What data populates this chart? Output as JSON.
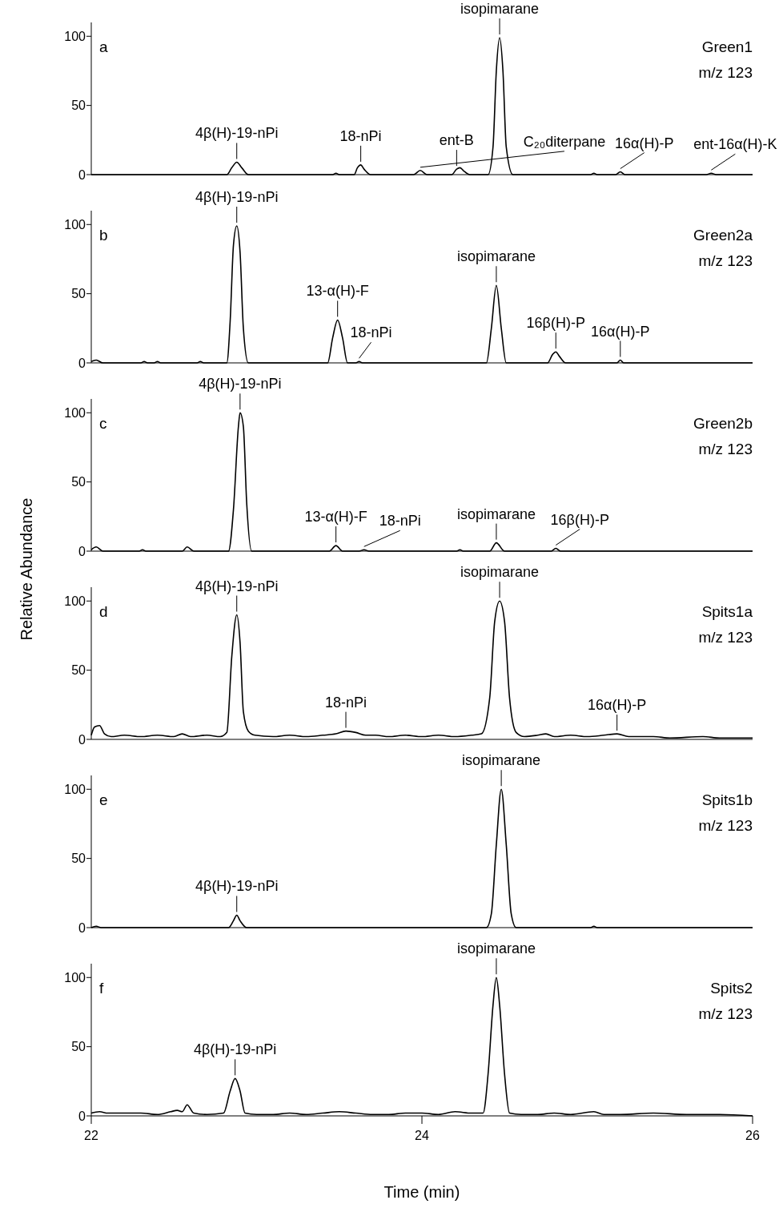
{
  "chart_data": [
    {
      "type": "line",
      "title": "a",
      "annotations": [
        "Green1",
        "m/z 123",
        {
          "text": "isopimarane",
          "x": 24.47,
          "y": 99
        },
        {
          "text": "4β(H)-19-nPi",
          "x": 22.88,
          "y": 9
        },
        {
          "text": "18-nPi",
          "x": 23.63,
          "y": 7
        },
        {
          "text": "C₂₀diterpane",
          "x": 23.99,
          "y": 3
        },
        {
          "text": "ent-B",
          "x": 24.21,
          "y": 4
        },
        {
          "text": "16α(H)-P",
          "x": 25.2,
          "y": 2
        },
        {
          "text": "ent-16α(H)-K",
          "x": 25.75,
          "y": 1
        }
      ],
      "xlim": [
        22,
        26
      ],
      "xticks": [
        22,
        24,
        26
      ],
      "ylim": [
        0,
        110
      ],
      "yticks": [
        0,
        50,
        100
      ],
      "tick_labels": "y",
      "series": [
        {
          "color": "#000000",
          "x": [
            22,
            22.82,
            22.85,
            22.88,
            22.91,
            22.95,
            23.46,
            23.48,
            23.5,
            23.59,
            23.61,
            23.63,
            23.65,
            23.69,
            23.95,
            23.99,
            24.03,
            24.18,
            24.21,
            24.23,
            24.25,
            24.29,
            24.4,
            24.43,
            24.45,
            24.47,
            24.49,
            24.51,
            24.55,
            25.02,
            25.04,
            25.06,
            25.17,
            25.2,
            25.23,
            25.72,
            25.75,
            25.78,
            26
          ],
          "values": [
            0,
            0,
            5,
            9,
            5,
            0,
            0,
            1,
            0,
            0,
            5,
            7,
            4,
            0,
            0,
            3,
            0,
            0,
            4,
            5,
            3,
            0,
            0,
            20,
            75,
            99,
            75,
            20,
            0,
            0,
            1,
            0,
            0,
            2,
            0,
            0,
            1,
            0,
            0
          ]
        }
      ]
    },
    {
      "type": "line",
      "title": "b",
      "annotations": [
        "Green2a",
        "m/z 123",
        {
          "text": "4β(H)-19-nPi",
          "x": 22.88,
          "y": 99
        },
        {
          "text": "13-α(H)-F",
          "x": 23.49,
          "y": 31
        },
        {
          "text": "18-nPi",
          "x": 23.62,
          "y": 1
        },
        {
          "text": "isopimarane",
          "x": 24.45,
          "y": 56
        },
        {
          "text": "16β(H)-P",
          "x": 24.81,
          "y": 8
        },
        {
          "text": "16α(H)-P",
          "x": 25.2,
          "y": 2
        }
      ],
      "xlim": [
        22,
        26
      ],
      "xticks": [
        22,
        24,
        26
      ],
      "ylim": [
        0,
        110
      ],
      "yticks": [
        0,
        50,
        100
      ],
      "tick_labels": "y",
      "series": [
        {
          "color": "#000000",
          "x": [
            22,
            22.03,
            22.07,
            22.3,
            22.32,
            22.34,
            22.38,
            22.4,
            22.42,
            22.64,
            22.66,
            22.68,
            22.82,
            22.84,
            22.86,
            22.88,
            22.9,
            22.92,
            22.95,
            23.43,
            23.46,
            23.49,
            23.52,
            23.55,
            23.6,
            23.62,
            23.64,
            24.39,
            24.42,
            24.45,
            24.48,
            24.51,
            24.76,
            24.79,
            24.81,
            24.83,
            24.87,
            25.18,
            25.2,
            25.22,
            26
          ],
          "values": [
            1,
            2,
            0,
            0,
            1,
            0,
            0,
            1,
            0,
            0,
            1,
            0,
            0,
            30,
            85,
            99,
            80,
            25,
            0,
            0,
            18,
            31,
            18,
            0,
            0,
            1,
            0,
            0,
            25,
            56,
            25,
            0,
            0,
            6,
            8,
            5,
            0,
            0,
            2,
            0,
            0
          ]
        }
      ]
    },
    {
      "type": "line",
      "title": "c",
      "annotations": [
        "Green2b",
        "m/z 123",
        {
          "text": "4β(H)-19-nPi",
          "x": 22.9,
          "y": 100
        },
        {
          "text": "13-α(H)-F",
          "x": 23.48,
          "y": 4
        },
        {
          "text": "18-nPi",
          "x": 23.65,
          "y": 1
        },
        {
          "text": "isopimarane",
          "x": 24.45,
          "y": 6
        },
        {
          "text": "16β(H)-P",
          "x": 24.81,
          "y": 2
        }
      ],
      "xlim": [
        22,
        26
      ],
      "xticks": [
        22,
        24,
        26
      ],
      "ylim": [
        0,
        110
      ],
      "yticks": [
        0,
        50,
        100
      ],
      "tick_labels": "y",
      "series": [
        {
          "color": "#000000",
          "x": [
            22,
            22.03,
            22.07,
            22.29,
            22.31,
            22.33,
            22.55,
            22.58,
            22.62,
            22.83,
            22.86,
            22.89,
            22.9,
            22.92,
            22.94,
            22.97,
            23.44,
            23.48,
            23.52,
            23.62,
            23.65,
            23.68,
            24.21,
            24.23,
            24.25,
            24.41,
            24.45,
            24.5,
            24.78,
            24.81,
            24.84,
            26
          ],
          "values": [
            1,
            3,
            0,
            0,
            1,
            0,
            0,
            3,
            0,
            0,
            30,
            90,
            100,
            90,
            35,
            0,
            0,
            4,
            0,
            0,
            1,
            0,
            0,
            1,
            0,
            0,
            6,
            0,
            0,
            2,
            0,
            0
          ]
        }
      ]
    },
    {
      "type": "line",
      "title": "d",
      "ylabel": "Relative Abundance",
      "annotations": [
        "Spits1a",
        "m/z 123",
        {
          "text": "4β(H)-19-nPi",
          "x": 22.88,
          "y": 90
        },
        {
          "text": "isopimarane",
          "x": 24.47,
          "y": 100
        },
        {
          "text": "18-nPi",
          "x": 23.54,
          "y": 6
        },
        {
          "text": "16α(H)-P",
          "x": 25.18,
          "y": 4
        }
      ],
      "xlim": [
        22,
        26
      ],
      "xticks": [
        22,
        24,
        26
      ],
      "ylim": [
        0,
        110
      ],
      "yticks": [
        0,
        50,
        100
      ],
      "tick_labels": "y",
      "series": [
        {
          "color": "#000000",
          "x": [
            22,
            22.02,
            22.05,
            22.08,
            22.12,
            22.2,
            22.3,
            22.4,
            22.5,
            22.55,
            22.6,
            22.7,
            22.78,
            22.82,
            22.85,
            22.88,
            22.9,
            22.92,
            22.95,
            22.99,
            23.1,
            23.2,
            23.3,
            23.4,
            23.48,
            23.54,
            23.6,
            23.66,
            23.72,
            23.8,
            23.9,
            24.0,
            24.1,
            24.2,
            24.3,
            24.36,
            24.41,
            24.44,
            24.47,
            24.5,
            24.53,
            24.57,
            24.62,
            24.7,
            24.75,
            24.8,
            24.9,
            25.0,
            25.1,
            25.18,
            25.25,
            25.4,
            25.5,
            25.7,
            25.8,
            26
          ],
          "values": [
            3,
            9,
            10,
            4,
            2,
            3,
            2,
            3,
            2,
            4,
            2,
            3,
            2,
            5,
            60,
            90,
            70,
            20,
            6,
            3,
            2,
            3,
            2,
            3,
            4,
            6,
            5,
            3,
            3,
            2,
            3,
            2,
            3,
            2,
            3,
            4,
            30,
            85,
            100,
            85,
            30,
            5,
            2,
            3,
            4,
            2,
            3,
            2,
            3,
            4,
            2,
            2,
            1,
            2,
            1,
            1
          ]
        }
      ]
    },
    {
      "type": "line",
      "title": "e",
      "annotations": [
        "Spits1b",
        "m/z 123",
        {
          "text": "isopimarane",
          "x": 24.48,
          "y": 100
        },
        {
          "text": "4β(H)-19-nPi",
          "x": 22.88,
          "y": 9
        }
      ],
      "xlim": [
        22,
        26
      ],
      "xticks": [
        22,
        24,
        26
      ],
      "ylim": [
        0,
        110
      ],
      "yticks": [
        0,
        50,
        100
      ],
      "tick_labels": "y",
      "series": [
        {
          "color": "#000000",
          "x": [
            22,
            22.03,
            22.06,
            22.83,
            22.86,
            22.88,
            22.9,
            22.94,
            24.39,
            24.42,
            24.45,
            24.48,
            24.51,
            24.54,
            24.57,
            25.02,
            25.04,
            25.06,
            26
          ],
          "values": [
            0,
            1,
            0,
            0,
            5,
            9,
            5,
            0,
            0,
            10,
            60,
            100,
            60,
            10,
            0,
            0,
            1,
            0,
            0
          ]
        }
      ]
    },
    {
      "type": "line",
      "title": "f",
      "xlabel": "Time (min)",
      "annotations": [
        "Spits2",
        "m/z 123",
        {
          "text": "isopimarane",
          "x": 24.45,
          "y": 100
        },
        {
          "text": "4β(H)-19-nPi",
          "x": 22.87,
          "y": 27
        }
      ],
      "xlim": [
        22,
        26
      ],
      "xticks": [
        22,
        24,
        26
      ],
      "ylim": [
        0,
        110
      ],
      "yticks": [
        0,
        50,
        100
      ],
      "series": [
        {
          "color": "#000000",
          "x": [
            22,
            22.05,
            22.1,
            22.2,
            22.3,
            22.4,
            22.48,
            22.52,
            22.55,
            22.58,
            22.62,
            22.7,
            22.8,
            22.84,
            22.87,
            22.9,
            22.93,
            23.0,
            23.1,
            23.2,
            23.3,
            23.4,
            23.5,
            23.6,
            23.7,
            23.8,
            23.9,
            24.0,
            24.1,
            24.2,
            24.3,
            24.37,
            24.4,
            24.43,
            24.45,
            24.47,
            24.5,
            24.53,
            24.6,
            24.7,
            24.8,
            24.9,
            25.04,
            25.1,
            25.2,
            25.4,
            25.6,
            25.8,
            26
          ],
          "values": [
            2,
            3,
            2,
            2,
            2,
            1,
            3,
            4,
            3,
            8,
            2,
            1,
            2,
            18,
            27,
            18,
            2,
            1,
            1,
            2,
            1,
            2,
            3,
            2,
            1,
            1,
            2,
            2,
            1,
            3,
            2,
            2,
            30,
            80,
            100,
            80,
            30,
            2,
            1,
            1,
            2,
            1,
            3,
            1,
            1,
            2,
            1,
            1,
            0
          ]
        }
      ]
    }
  ]
}
